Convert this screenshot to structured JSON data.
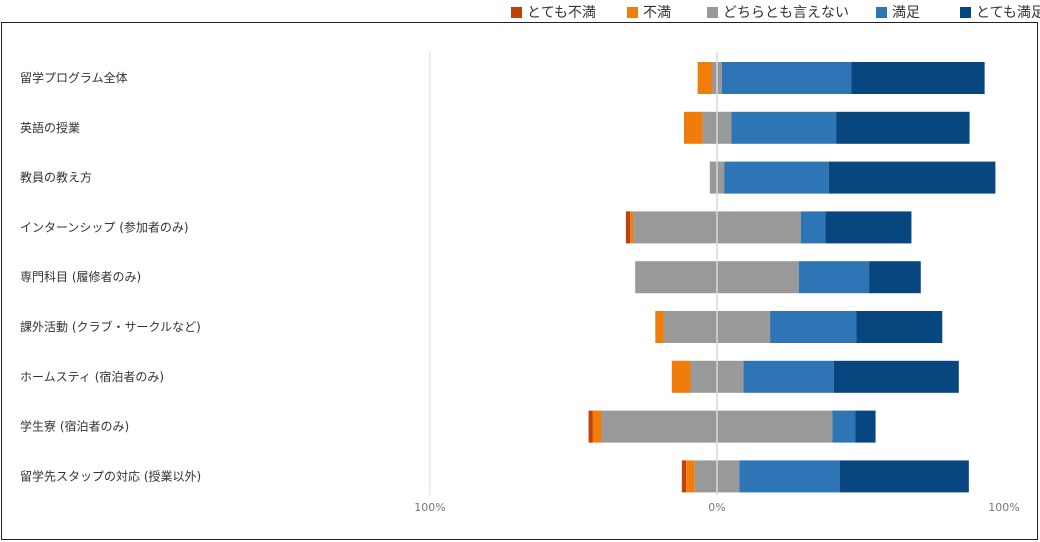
{
  "chart_data": {
    "type": "bar",
    "orientation": "horizontal",
    "stacked": "diverging",
    "legend_position": "top-right",
    "grid": false,
    "xlim": [
      -100,
      100
    ],
    "x_ticks": [
      {
        "value": -100,
        "label": "100%"
      },
      {
        "value": 0,
        "label": "0%"
      },
      {
        "value": 100,
        "label": "100%"
      }
    ],
    "categories": [
      "留学プログラム全体",
      "英語の授業",
      "教員の教え方",
      "インターンシップ (参加者のみ)",
      "専門科目 (履修者のみ)",
      "課外活動 (クラブ・サークルなど)",
      "ホームスティ (宿泊者のみ)",
      "学生寮 (宿泊者のみ)",
      "留学先スタップの対応 (授業以外)"
    ],
    "series": [
      {
        "name": "とても不満",
        "color": "#c0410c",
        "values": [
          0,
          0,
          0,
          1.5,
          0,
          0,
          0,
          1.5,
          1.5
        ]
      },
      {
        "name": "不満",
        "color": "#f07d0a",
        "values": [
          5,
          6.5,
          0,
          1,
          0,
          3,
          6.5,
          3,
          3
        ]
      },
      {
        "name": "どちらとも言えない",
        "color": "#999999",
        "values": [
          3.5,
          10,
          5,
          58.5,
          57,
          37,
          18.5,
          80.5,
          15.5
        ]
      },
      {
        "name": "満足",
        "color": "#2e75b6",
        "values": [
          45,
          36.5,
          36.5,
          8.5,
          24.5,
          30,
          31.5,
          8,
          35
        ]
      },
      {
        "name": "とても満足",
        "color": "#08467f",
        "values": [
          46.5,
          46.5,
          58,
          30,
          18,
          30,
          43.5,
          7,
          45
        ]
      }
    ]
  }
}
